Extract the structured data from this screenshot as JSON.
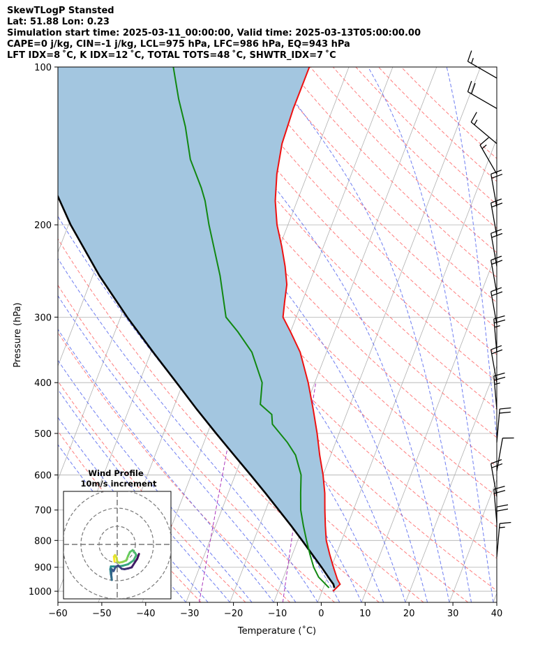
{
  "title_lines": [
    "SkewTLogP Stansted",
    "Lat: 51.88   Lon: 0.23",
    "Simulation start time: 2025-03-11_00:00:00, Valid time: 2025-03-13T05:00:00.00",
    "CAPE=0 j/kg, CIN=-1 j/kg, LCL=975 hPa, LFC=986 hPa, EQ=943 hPa",
    "LFT IDX=8 ˚C, K IDX=12 ˚C, TOTAL TOTS=48 ˚C, SHWTR_IDX=7 ˚C"
  ],
  "chart_data": {
    "type": "line",
    "subtype": "skew-t log-p",
    "xlabel": "Temperature (˚C)",
    "ylabel": "Pressure (hPa)",
    "xlim": [
      -60,
      40
    ],
    "ylim_pressure": [
      1050,
      100
    ],
    "x_ticks": [
      -60,
      -50,
      -40,
      -30,
      -20,
      -10,
      0,
      10,
      20,
      30,
      40
    ],
    "x_tick_labels": [
      "−60",
      "−50",
      "−40",
      "−30",
      "−20",
      "−10",
      "0",
      "10",
      "20",
      "30",
      "40"
    ],
    "y_ticks": [
      100,
      200,
      300,
      400,
      500,
      600,
      700,
      800,
      900,
      1000
    ],
    "grid": true,
    "colors": {
      "temperature": "#ee1111",
      "dewpoint": "#118811",
      "parcel": "#000000",
      "area_fill": "#a3c6e0",
      "dry_adiabats": "#ff6666",
      "moist_adiabats": "#5566ee",
      "mixing_ratio": "#aa33bb",
      "isotherms": "#b0b0b0"
    },
    "series": [
      {
        "key": "temperature",
        "points": [
          [
            1000,
            2.5
          ],
          [
            970,
            3.5
          ],
          [
            950,
            2.5
          ],
          [
            900,
            0.5
          ],
          [
            850,
            -1.5
          ],
          [
            800,
            -3.5
          ],
          [
            750,
            -5
          ],
          [
            700,
            -6.5
          ],
          [
            650,
            -8
          ],
          [
            600,
            -10
          ],
          [
            550,
            -12.5
          ],
          [
            500,
            -15
          ],
          [
            450,
            -18
          ],
          [
            400,
            -21.5
          ],
          [
            350,
            -26
          ],
          [
            320,
            -30
          ],
          [
            300,
            -33
          ],
          [
            280,
            -34
          ],
          [
            260,
            -35
          ],
          [
            240,
            -37
          ],
          [
            220,
            -39.5
          ],
          [
            200,
            -42.5
          ],
          [
            180,
            -45
          ],
          [
            160,
            -47
          ],
          [
            140,
            -48.5
          ],
          [
            120,
            -49
          ],
          [
            110,
            -49
          ],
          [
            100,
            -49
          ]
        ]
      },
      {
        "key": "dewpoint",
        "points": [
          [
            985,
            1.3
          ],
          [
            960,
            -0.5
          ],
          [
            940,
            -2
          ],
          [
            900,
            -4
          ],
          [
            850,
            -6
          ],
          [
            800,
            -8
          ],
          [
            750,
            -10
          ],
          [
            700,
            -12
          ],
          [
            650,
            -13.5
          ],
          [
            600,
            -15
          ],
          [
            550,
            -18
          ],
          [
            520,
            -21
          ],
          [
            480,
            -26
          ],
          [
            460,
            -27
          ],
          [
            440,
            -30.5
          ],
          [
            400,
            -32
          ],
          [
            350,
            -37
          ],
          [
            320,
            -42
          ],
          [
            300,
            -46
          ],
          [
            250,
            -51
          ],
          [
            220,
            -55
          ],
          [
            200,
            -58
          ],
          [
            180,
            -61
          ],
          [
            170,
            -63
          ],
          [
            150,
            -68
          ],
          [
            130,
            -72
          ],
          [
            115,
            -76
          ],
          [
            100,
            -80
          ]
        ]
      },
      {
        "key": "parcel",
        "points": [
          [
            985,
            2.5
          ],
          [
            970,
            2
          ],
          [
            950,
            0.8
          ],
          [
            900,
            -2.2
          ],
          [
            850,
            -5.5
          ],
          [
            800,
            -9
          ],
          [
            750,
            -12.8
          ],
          [
            700,
            -17
          ],
          [
            650,
            -21.5
          ],
          [
            600,
            -26.5
          ],
          [
            550,
            -32
          ],
          [
            500,
            -38
          ],
          [
            450,
            -44.5
          ],
          [
            400,
            -51.5
          ],
          [
            350,
            -59.5
          ],
          [
            300,
            -68.5
          ],
          [
            250,
            -78.5
          ],
          [
            200,
            -89.5
          ],
          [
            150,
            -102
          ],
          [
            100,
            -116
          ]
        ]
      }
    ],
    "wind_barbs": [
      {
        "p": 105,
        "speed_kt": 15,
        "dir": 300
      },
      {
        "p": 120,
        "speed_kt": 20,
        "dir": 300
      },
      {
        "p": 140,
        "speed_kt": 15,
        "dir": 310
      },
      {
        "p": 160,
        "speed_kt": 15,
        "dir": 330
      },
      {
        "p": 185,
        "speed_kt": 20,
        "dir": 350
      },
      {
        "p": 210,
        "speed_kt": 20,
        "dir": 350
      },
      {
        "p": 240,
        "speed_kt": 20,
        "dir": 350
      },
      {
        "p": 270,
        "speed_kt": 20,
        "dir": 350
      },
      {
        "p": 310,
        "speed_kt": 20,
        "dir": 350
      },
      {
        "p": 350,
        "speed_kt": 25,
        "dir": 355
      },
      {
        "p": 400,
        "speed_kt": 20,
        "dir": 350
      },
      {
        "p": 450,
        "speed_kt": 25,
        "dir": 355
      },
      {
        "p": 520,
        "speed_kt": 20,
        "dir": 5
      },
      {
        "p": 590,
        "speed_kt": 10,
        "dir": 10
      },
      {
        "p": 660,
        "speed_kt": 20,
        "dir": 350
      },
      {
        "p": 740,
        "speed_kt": 20,
        "dir": 355
      },
      {
        "p": 800,
        "speed_kt": 20,
        "dir": 0
      },
      {
        "p": 860,
        "speed_kt": 15,
        "dir": 5
      }
    ],
    "inset": {
      "title": "Wind Profile",
      "subtitle": "10m/s increment",
      "rings_mps": [
        10,
        20,
        30
      ],
      "hodograph": [
        [
          -1.5,
          -4.5
        ],
        [
          -1.8,
          -3.2
        ],
        [
          -1.2,
          -2.8
        ],
        [
          -0.3,
          -3.5
        ],
        [
          0,
          -4.5
        ],
        [
          1,
          -4.8
        ],
        [
          3,
          -4.6
        ],
        [
          5,
          -4.2
        ],
        [
          6,
          -3
        ],
        [
          7,
          -2
        ],
        [
          8.5,
          -1.5
        ],
        [
          9.8,
          -2.2
        ],
        [
          10.5,
          -2.8
        ],
        [
          9,
          -4.2
        ],
        [
          6,
          -5.2
        ],
        [
          3,
          -5.6
        ],
        [
          0,
          -5.8
        ],
        [
          -2,
          -5.8
        ],
        [
          -3.5,
          -5.8
        ],
        [
          -3.8,
          -6.5
        ],
        [
          -3.5,
          -7.8
        ],
        [
          -3.2,
          -8.5
        ],
        [
          -3,
          -9.3
        ],
        [
          -3.3,
          -8
        ],
        [
          -3,
          -6.5
        ],
        [
          -2,
          -7
        ],
        [
          -1,
          -6
        ],
        [
          0.5,
          -5.5
        ],
        [
          2.5,
          -6.4
        ],
        [
          4,
          -6.5
        ],
        [
          6,
          -6.3
        ],
        [
          8,
          -6
        ],
        [
          10,
          -4.5
        ],
        [
          11,
          -3.8
        ],
        [
          12,
          -2.5
        ]
      ]
    }
  }
}
